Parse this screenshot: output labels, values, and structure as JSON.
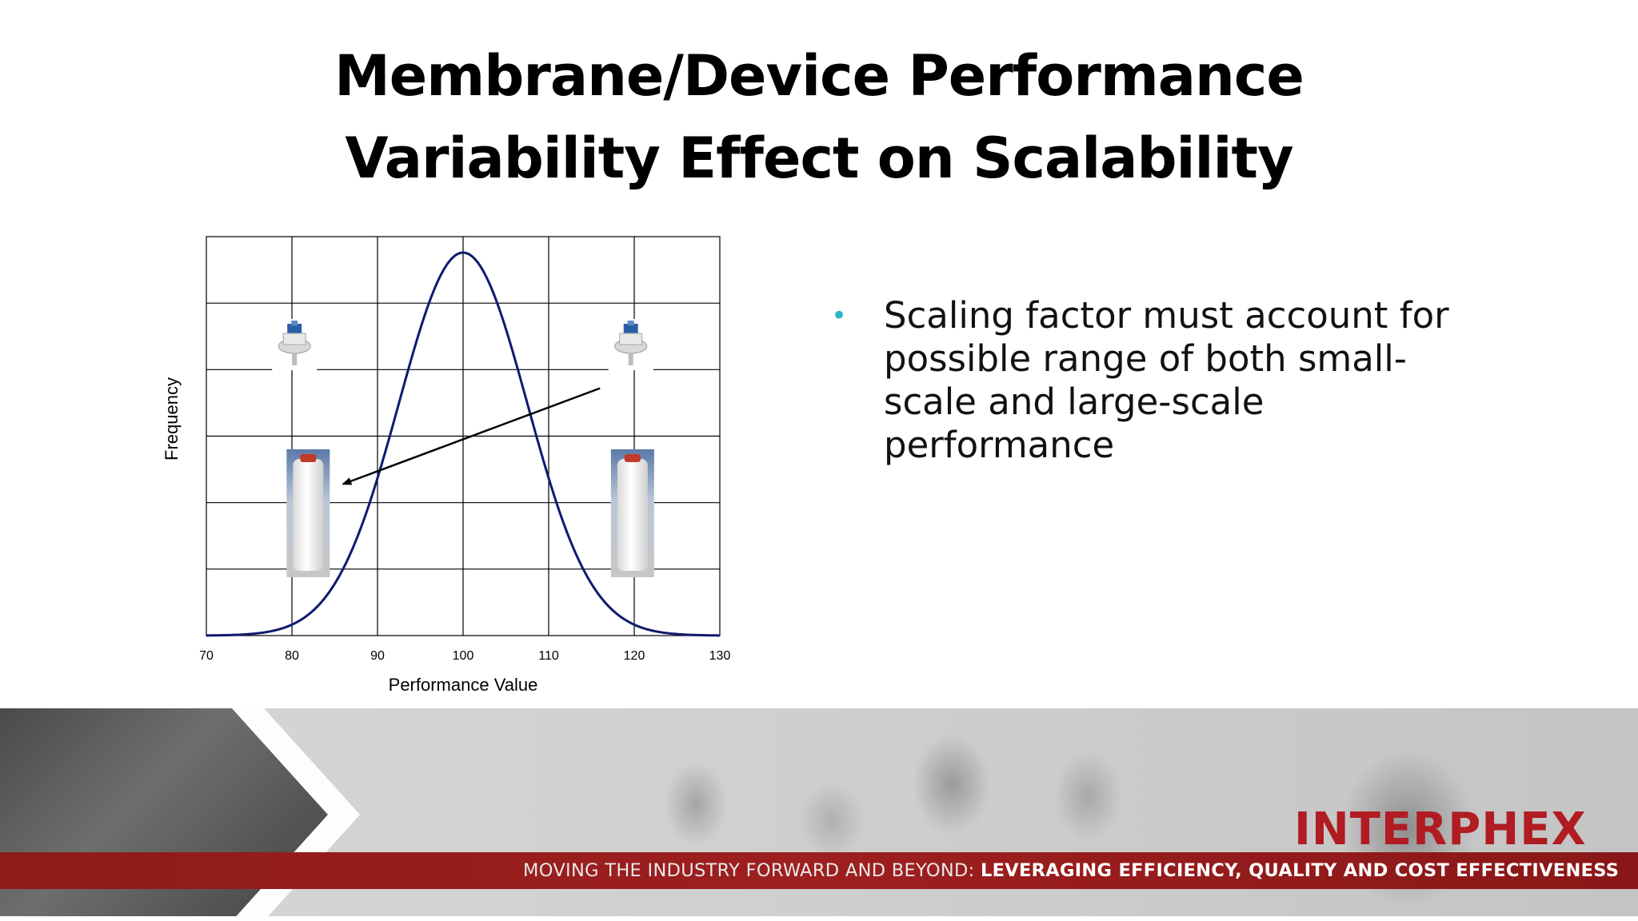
{
  "slide": {
    "title_line1": "Membrane/Device Performance",
    "title_line2": "Variability Effect on Scalability"
  },
  "bullets": [
    "Scaling factor must account for possible range of both small-scale and large-scale performance"
  ],
  "colors": {
    "bullet": "#2bb5c8",
    "curve": "#0f1a6e",
    "banner_bar": "#9e1f1f",
    "logo": "#b01c22"
  },
  "chart_data": {
    "type": "line",
    "xlabel": "Performance Value",
    "ylabel": "Frequency",
    "xlim": [
      70,
      130
    ],
    "x_ticks": [
      70,
      80,
      90,
      100,
      110,
      120,
      130
    ],
    "y_tick_labels": "none",
    "grid": true,
    "horizontal_gridlines": 6,
    "series": [
      {
        "distribution": "normal",
        "mean": 100,
        "std": 7.5,
        "peak_relative_height": 0.96
      }
    ],
    "annotations": [
      {
        "type": "arrow",
        "from_x": 116,
        "from_y_frac": 0.62,
        "to_x": 86,
        "to_y_frac": 0.38
      },
      {
        "type": "image",
        "icon": "small-scale-capsule-filter-icon",
        "x": 80.3
      },
      {
        "type": "image",
        "icon": "large-scale-cartridge-filter-icon",
        "x": 81.9
      },
      {
        "type": "image",
        "icon": "small-scale-capsule-filter-icon",
        "x": 119.6
      },
      {
        "type": "image",
        "icon": "large-scale-cartridge-filter-icon",
        "x": 119.8
      }
    ]
  },
  "footer": {
    "tagline_light": "MOVING THE INDUSTRY FORWARD AND BEYOND:",
    "tagline_bold": "LEVERAGING EFFICIENCY, QUALITY AND COST EFFECTIVENESS",
    "logo": "INTERPHEX"
  }
}
